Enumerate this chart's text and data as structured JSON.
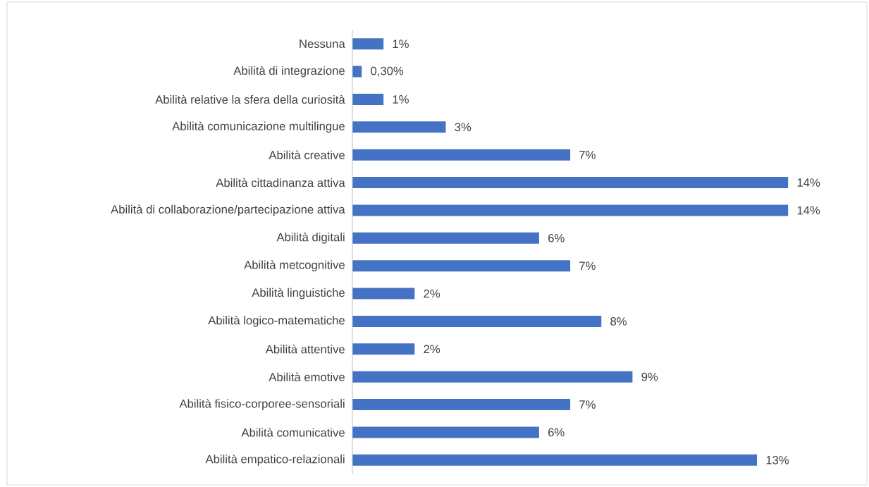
{
  "chart_data": {
    "type": "bar",
    "orientation": "horizontal",
    "color": "#4472c4",
    "categories": [
      "Nessuna",
      "Abilità di integrazione",
      "Abilità relative la sfera della curiosità",
      "Abilità comunicazione multilingue",
      "Abilità creative",
      "Abilità cittadinanza attiva",
      "Abilità di collaborazione/partecipazione attiva",
      "Abilità digitali",
      "Abilità metcognitive",
      "Abilità linguistiche",
      "Abilità logico-matematiche",
      "Abilità attentive",
      "Abilità emotive",
      "Abilità fisico-corporee-sensoriali",
      "Abilità comunicative",
      "Abilità empatico-relazionali"
    ],
    "values": [
      1,
      0.3,
      1,
      3,
      7,
      14,
      14,
      6,
      7,
      2,
      8,
      2,
      9,
      7,
      6,
      13
    ],
    "value_labels": [
      "1%",
      "0,30%",
      "1%",
      "3%",
      "7%",
      "14%",
      "14%",
      "6%",
      "7%",
      "2%",
      "8%",
      "2%",
      "9%",
      "7%",
      "6%",
      "13%"
    ]
  }
}
